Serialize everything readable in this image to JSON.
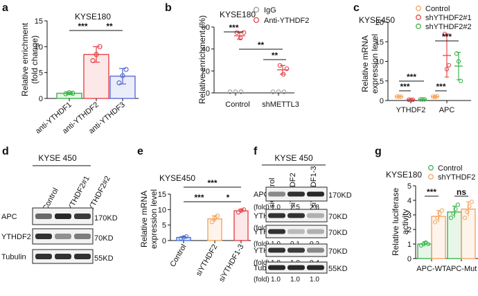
{
  "panel_letters": [
    "a",
    "b",
    "c",
    "d",
    "e",
    "f",
    "g"
  ],
  "chart_data": [
    {
      "panel": "a",
      "type": "bar",
      "title": "KYSE180",
      "ylabel": "Relative enrichment\n(fold change)",
      "ylim": [
        0,
        15
      ],
      "yticks": [
        0,
        5,
        10,
        15
      ],
      "categories": [
        "anti-YTHDF1",
        "anti-YTHDF2",
        "anti-YTHDF3"
      ],
      "values": [
        1.0,
        8.5,
        4.3
      ],
      "errors": [
        0.2,
        1.5,
        1.5
      ],
      "points": [
        [
          0.9,
          1.1,
          1.0
        ],
        [
          7.3,
          8.5,
          10.0
        ],
        [
          3.0,
          4.4,
          5.6
        ]
      ],
      "colors": [
        "#3cb44b",
        "#e8454a",
        "#5b6fd6"
      ],
      "significance": [
        {
          "from": 0,
          "to": 1,
          "label": "***"
        },
        {
          "from": 1,
          "to": 2,
          "label": "**"
        }
      ]
    },
    {
      "panel": "b",
      "type": "scatter",
      "title": "KYSE180",
      "ylabel": "Relative enrichment (%)",
      "ylim": [
        0,
        60
      ],
      "yticks": [
        0,
        20,
        40,
        60
      ],
      "categories": [
        "Control",
        "shMETTL3"
      ],
      "series": [
        {
          "name": "IgG",
          "color": "#999999",
          "means": [
            0.3,
            0.3
          ],
          "errors": [
            0,
            0
          ],
          "points": [
            [
              0.3,
              0.3,
              0.3
            ],
            [
              0.3,
              0.3,
              0.3
            ]
          ]
        },
        {
          "name": "Anti-YTHDF2",
          "color": "#e8454a",
          "means": [
            52,
            21
          ],
          "errors": [
            3,
            4
          ],
          "points": [
            [
              55,
              50,
              55
            ],
            [
              25,
              17,
              22
            ]
          ]
        }
      ],
      "significance": [
        {
          "label": "***"
        },
        {
          "label": "**"
        },
        {
          "label": "**"
        }
      ]
    },
    {
      "panel": "c",
      "type": "scatter",
      "title": "KYSE450",
      "ylabel": "Relative mRNA\nexpression level",
      "ylim": [
        0,
        20
      ],
      "yticks": [
        0,
        5,
        10,
        15,
        20
      ],
      "categories": [
        "YTHDF2",
        "APC"
      ],
      "series": [
        {
          "name": "Control",
          "color": "#f4a460",
          "means": [
            1.0,
            1.0
          ],
          "errors": [
            0.1,
            0.2
          ],
          "points": [
            [
              1.0,
              1.0,
              1.0
            ],
            [
              1.0,
              0.9,
              1.1
            ]
          ]
        },
        {
          "name": "shYTHDF2#1",
          "color": "#e8454a",
          "means": [
            0.2,
            11.5
          ],
          "errors": [
            0.05,
            5.5
          ],
          "points": [
            [
              0.2,
              0.2,
              0.2
            ],
            [
              17.0,
              8.0,
              9.0
            ]
          ]
        },
        {
          "name": "shYTHDF2#2",
          "color": "#3cb44b",
          "means": [
            0.3,
            8.8
          ],
          "errors": [
            0.05,
            3.5
          ],
          "points": [
            [
              0.3,
              0.3,
              0.3
            ],
            [
              12.0,
              10.0,
              5.0
            ]
          ]
        }
      ],
      "significance": [
        "***",
        "***",
        "***",
        "***"
      ]
    },
    {
      "panel": "e",
      "type": "bar",
      "title": "KYSE450",
      "ylabel": "Relative mRNA\nexpression level",
      "ylim": [
        0,
        15
      ],
      "yticks": [
        0,
        5,
        10,
        15
      ],
      "categories": [
        "Control",
        "siYTHDF2",
        "siYTHDF1-3"
      ],
      "values": [
        1.0,
        7.0,
        9.6
      ],
      "errors": [
        0.3,
        1.0,
        0.5
      ],
      "points": [
        [
          0.7,
          1.0,
          1.3
        ],
        [
          6.0,
          7.2,
          8.0
        ],
        [
          9.1,
          9.7,
          10.0
        ]
      ],
      "colors": [
        "#4a6fd6",
        "#f4a460",
        "#e8454a"
      ],
      "significance": [
        {
          "from": 0,
          "to": 2,
          "label": "***"
        },
        {
          "from": 0,
          "to": 1,
          "label": "***"
        },
        {
          "from": 1,
          "to": 2,
          "label": "*"
        }
      ]
    },
    {
      "panel": "g",
      "type": "bar",
      "title": "KYSE180",
      "ylabel": "Relative luciferase\nactivity",
      "ylim": [
        0,
        5
      ],
      "yticks": [
        0,
        1,
        2,
        3,
        4,
        5
      ],
      "categories": [
        "APC-WT",
        "APC-Mut"
      ],
      "series": [
        {
          "name": "Control",
          "color": "#3cb44b",
          "values": [
            1.0,
            3.2
          ],
          "errors": [
            0.15,
            0.4
          ],
          "points": [
            [
              0.9,
              1.0,
              1.1,
              1.0
            ],
            [
              2.8,
              3.1,
              3.4,
              3.7
            ]
          ]
        },
        {
          "name": "shYTHDF2",
          "color": "#f4a460",
          "values": [
            2.9,
            3.4
          ],
          "errors": [
            0.4,
            0.5
          ],
          "points": [
            [
              2.5,
              2.8,
              3.1,
              3.3
            ],
            [
              2.8,
              3.2,
              3.6,
              3.9
            ]
          ]
        }
      ],
      "significance": [
        {
          "group": 0,
          "label": "***"
        },
        {
          "group": 1,
          "label": "ns"
        }
      ]
    }
  ],
  "blot_d": {
    "title": "KYSE 450",
    "lanes": [
      "shControl",
      "shYTHDF2#1",
      "shYTHDF2#2"
    ],
    "rows": [
      {
        "label": "APC",
        "size": "170KD",
        "intensities": [
          0.55,
          0.9,
          0.8
        ]
      },
      {
        "label": "YTHDF2",
        "size": "70KD",
        "intensities": [
          0.85,
          0.35,
          0.45
        ]
      },
      {
        "label": "Tubulin",
        "size": "55KD",
        "intensities": [
          0.85,
          0.85,
          0.85
        ]
      }
    ]
  },
  "blot_f": {
    "title": "KYSE 450",
    "lanes": [
      "siControl",
      "siYTHDF2",
      "siYTHDF1-3"
    ],
    "fold_label": "(fold)",
    "rows": [
      {
        "label": "APC",
        "size": "170KD",
        "fold": [
          "1.0",
          "2.5",
          "2.8"
        ],
        "intensities": [
          0.4,
          0.85,
          0.9
        ]
      },
      {
        "label": "YTHDF1",
        "size": "70KD",
        "fold": [
          "1.0",
          "1.0",
          "0.2"
        ],
        "intensities": [
          0.85,
          0.85,
          0.2
        ]
      },
      {
        "label": "YTHDF2",
        "size": "70KD",
        "fold": [
          "1.0",
          "0.1",
          "0.2"
        ],
        "intensities": [
          0.85,
          0.15,
          0.2
        ]
      },
      {
        "label": "YTHDF3",
        "size": "70KD",
        "fold": [
          "1.0",
          "1.0",
          "0.4"
        ],
        "intensities": [
          0.85,
          0.8,
          0.4
        ]
      },
      {
        "label": "Tubulin",
        "size": "55KD",
        "fold": [
          "1.0",
          "1.0",
          "1.0"
        ],
        "intensities": [
          0.9,
          0.9,
          0.9
        ]
      }
    ]
  }
}
